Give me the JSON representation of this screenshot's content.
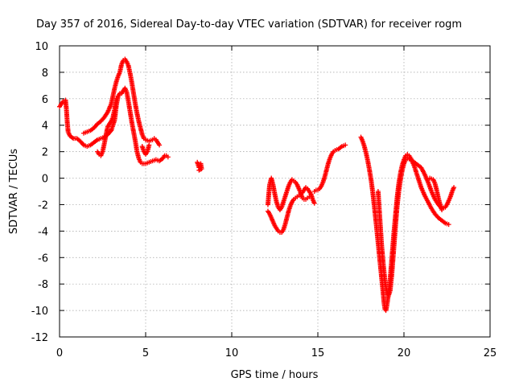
{
  "chart_data": {
    "type": "scatter",
    "title": "Day 357 of 2016, Sidereal Day-to-day VTEC variation (SDTVAR) for receiver rogm",
    "xlabel": "GPS time / hours",
    "ylabel": "SDTVAR / TECUs",
    "xlim": [
      0,
      25
    ],
    "ylim": [
      -12,
      10
    ],
    "xticks": [
      0,
      5,
      10,
      15,
      20,
      25
    ],
    "yticks": [
      10,
      8,
      6,
      4,
      2,
      0,
      -2,
      -4,
      -6,
      -8,
      -10,
      -12
    ],
    "grid": true,
    "marker": "+",
    "color": "#ff0000",
    "series": [
      {
        "values": [
          [
            0.0,
            5.4
          ],
          [
            0.1,
            5.6
          ],
          [
            0.2,
            5.8
          ],
          [
            0.3,
            5.7
          ],
          [
            0.35,
            5.9
          ],
          [
            0.4,
            5.2
          ],
          [
            0.45,
            4.2
          ],
          [
            0.5,
            3.5
          ],
          [
            0.6,
            3.2
          ],
          [
            0.8,
            3.0
          ],
          [
            1.0,
            3.0
          ],
          [
            1.2,
            2.8
          ],
          [
            1.4,
            2.5
          ],
          [
            1.6,
            2.4
          ],
          [
            1.8,
            2.5
          ],
          [
            2.0,
            2.7
          ],
          [
            2.2,
            2.9
          ],
          [
            2.4,
            3.0
          ],
          [
            2.6,
            3.1
          ],
          [
            2.8,
            3.3
          ],
          [
            3.0,
            3.6
          ],
          [
            3.2,
            4.4
          ],
          [
            3.3,
            5.5
          ],
          [
            3.4,
            6.2
          ],
          [
            3.5,
            6.4
          ],
          [
            3.6,
            6.4
          ],
          [
            3.7,
            6.6
          ],
          [
            3.8,
            6.8
          ],
          [
            3.9,
            6.5
          ],
          [
            4.0,
            5.8
          ],
          [
            4.1,
            5.0
          ],
          [
            4.2,
            4.2
          ],
          [
            4.3,
            3.5
          ],
          [
            4.4,
            2.8
          ],
          [
            4.5,
            2.0
          ],
          [
            4.6,
            1.5
          ],
          [
            4.7,
            1.2
          ],
          [
            4.8,
            1.1
          ],
          [
            5.0,
            1.1
          ],
          [
            5.2,
            1.2
          ],
          [
            5.4,
            1.3
          ],
          [
            5.6,
            1.4
          ],
          [
            5.8,
            1.3
          ],
          [
            6.0,
            1.5
          ],
          [
            6.1,
            1.7
          ],
          [
            6.2,
            1.7
          ],
          [
            6.3,
            1.6
          ]
        ]
      },
      {
        "values": [
          [
            1.4,
            3.4
          ],
          [
            1.6,
            3.5
          ],
          [
            1.8,
            3.6
          ],
          [
            2.0,
            3.8
          ],
          [
            2.2,
            4.1
          ],
          [
            2.4,
            4.3
          ],
          [
            2.6,
            4.6
          ],
          [
            2.8,
            5.0
          ],
          [
            3.0,
            5.6
          ],
          [
            3.1,
            6.2
          ],
          [
            3.2,
            6.8
          ],
          [
            3.3,
            7.3
          ],
          [
            3.4,
            7.7
          ],
          [
            3.5,
            8.0
          ],
          [
            3.6,
            8.6
          ],
          [
            3.7,
            8.9
          ],
          [
            3.8,
            9.0
          ],
          [
            3.9,
            8.8
          ],
          [
            4.0,
            8.5
          ],
          [
            4.1,
            7.9
          ],
          [
            4.2,
            7.2
          ],
          [
            4.3,
            6.4
          ],
          [
            4.4,
            5.6
          ],
          [
            4.5,
            4.9
          ],
          [
            4.6,
            4.3
          ],
          [
            4.7,
            3.8
          ],
          [
            4.8,
            3.3
          ],
          [
            4.9,
            3.0
          ],
          [
            5.0,
            2.9
          ],
          [
            5.2,
            2.8
          ],
          [
            5.4,
            2.9
          ],
          [
            5.5,
            3.0
          ],
          [
            5.6,
            2.9
          ],
          [
            5.7,
            2.7
          ],
          [
            5.8,
            2.5
          ]
        ]
      },
      {
        "values": [
          [
            2.2,
            2.0
          ],
          [
            2.3,
            1.8
          ],
          [
            2.4,
            1.7
          ],
          [
            2.5,
            2.0
          ],
          [
            2.6,
            2.6
          ],
          [
            2.7,
            3.3
          ],
          [
            2.8,
            3.9
          ],
          [
            2.9,
            4.1
          ],
          [
            3.0,
            4.3
          ],
          [
            3.1,
            4.6
          ],
          [
            3.2,
            5.2
          ],
          [
            3.3,
            6.0
          ]
        ]
      },
      {
        "values": [
          [
            4.8,
            2.4
          ],
          [
            4.9,
            2.0
          ],
          [
            5.0,
            1.8
          ],
          [
            5.1,
            2.0
          ],
          [
            5.2,
            2.5
          ]
        ]
      },
      {
        "values": [
          [
            8.0,
            1.2
          ],
          [
            8.05,
            1.0
          ],
          [
            8.1,
            0.8
          ],
          [
            8.15,
            0.9
          ],
          [
            8.2,
            1.1
          ],
          [
            8.25,
            0.7
          ],
          [
            8.1,
            0.6
          ]
        ]
      },
      {
        "values": [
          [
            12.1,
            -2.0
          ],
          [
            12.15,
            -1.2
          ],
          [
            12.2,
            -0.5
          ],
          [
            12.3,
            0.0
          ],
          [
            12.4,
            -0.5
          ],
          [
            12.5,
            -1.2
          ],
          [
            12.6,
            -1.8
          ],
          [
            12.7,
            -2.2
          ],
          [
            12.8,
            -2.4
          ],
          [
            12.9,
            -2.2
          ],
          [
            13.0,
            -1.8
          ],
          [
            13.1,
            -1.4
          ],
          [
            13.2,
            -1.0
          ],
          [
            13.3,
            -0.6
          ],
          [
            13.4,
            -0.3
          ],
          [
            13.5,
            -0.1
          ],
          [
            13.6,
            -0.2
          ],
          [
            13.7,
            -0.3
          ],
          [
            13.8,
            -0.5
          ],
          [
            13.9,
            -0.8
          ],
          [
            14.0,
            -1.1
          ],
          [
            14.1,
            -1.5
          ],
          [
            14.2,
            -1.6
          ],
          [
            14.3,
            -1.6
          ],
          [
            14.4,
            -1.5
          ],
          [
            14.5,
            -1.4
          ]
        ]
      },
      {
        "values": [
          [
            12.1,
            -2.5
          ],
          [
            12.2,
            -2.7
          ],
          [
            12.3,
            -3.0
          ],
          [
            12.4,
            -3.3
          ],
          [
            12.5,
            -3.6
          ],
          [
            12.6,
            -3.8
          ],
          [
            12.7,
            -4.0
          ],
          [
            12.8,
            -4.1
          ],
          [
            12.9,
            -4.1
          ],
          [
            13.0,
            -3.9
          ],
          [
            13.1,
            -3.5
          ],
          [
            13.2,
            -3.0
          ],
          [
            13.3,
            -2.5
          ],
          [
            13.4,
            -2.1
          ],
          [
            13.5,
            -1.8
          ],
          [
            13.6,
            -1.6
          ],
          [
            13.7,
            -1.5
          ],
          [
            13.8,
            -1.4
          ],
          [
            13.9,
            -1.3
          ],
          [
            14.0,
            -1.2
          ],
          [
            14.1,
            -1.1
          ],
          [
            14.2,
            -0.9
          ],
          [
            14.3,
            -0.7
          ],
          [
            14.4,
            -0.8
          ],
          [
            14.5,
            -1.0
          ],
          [
            14.6,
            -1.2
          ],
          [
            14.7,
            -1.6
          ],
          [
            14.8,
            -1.9
          ]
        ]
      },
      {
        "values": [
          [
            14.8,
            -1.0
          ],
          [
            14.9,
            -0.9
          ],
          [
            15.0,
            -0.9
          ],
          [
            15.1,
            -0.8
          ],
          [
            15.2,
            -0.6
          ],
          [
            15.3,
            -0.3
          ],
          [
            15.4,
            0.1
          ],
          [
            15.5,
            0.6
          ],
          [
            15.6,
            1.1
          ],
          [
            15.7,
            1.5
          ],
          [
            15.8,
            1.8
          ],
          [
            15.9,
            2.0
          ],
          [
            16.0,
            2.1
          ],
          [
            16.2,
            2.2
          ],
          [
            16.4,
            2.4
          ],
          [
            16.6,
            2.5
          ]
        ]
      },
      {
        "values": [
          [
            17.5,
            3.1
          ],
          [
            17.6,
            2.8
          ],
          [
            17.7,
            2.4
          ],
          [
            17.8,
            1.9
          ],
          [
            17.9,
            1.3
          ],
          [
            18.0,
            0.6
          ],
          [
            18.1,
            -0.2
          ],
          [
            18.2,
            -1.2
          ],
          [
            18.3,
            -2.4
          ],
          [
            18.4,
            -3.6
          ],
          [
            18.5,
            -4.9
          ],
          [
            18.6,
            -6.2
          ],
          [
            18.7,
            -7.5
          ],
          [
            18.8,
            -8.8
          ],
          [
            18.85,
            -9.5
          ],
          [
            18.9,
            -9.9
          ],
          [
            18.95,
            -10.0
          ],
          [
            19.0,
            -9.7
          ],
          [
            19.1,
            -8.8
          ],
          [
            19.2,
            -7.6
          ],
          [
            19.3,
            -6.0
          ],
          [
            19.4,
            -4.4
          ],
          [
            19.5,
            -2.9
          ],
          [
            19.6,
            -1.5
          ],
          [
            19.7,
            -0.4
          ],
          [
            19.8,
            0.4
          ],
          [
            19.9,
            1.0
          ],
          [
            20.0,
            1.4
          ],
          [
            20.1,
            1.7
          ],
          [
            20.2,
            1.8
          ],
          [
            20.3,
            1.7
          ],
          [
            20.4,
            1.5
          ],
          [
            20.5,
            1.2
          ],
          [
            20.6,
            0.9
          ],
          [
            20.7,
            0.5
          ],
          [
            20.8,
            0.1
          ],
          [
            20.9,
            -0.3
          ],
          [
            21.0,
            -0.7
          ],
          [
            21.2,
            -1.3
          ],
          [
            21.4,
            -1.8
          ],
          [
            21.6,
            -2.3
          ],
          [
            21.8,
            -2.7
          ],
          [
            22.0,
            -3.0
          ],
          [
            22.2,
            -3.2
          ],
          [
            22.4,
            -3.4
          ],
          [
            22.6,
            -3.5
          ]
        ]
      },
      {
        "values": [
          [
            18.5,
            -1.0
          ],
          [
            18.6,
            -3.0
          ],
          [
            18.7,
            -5.0
          ],
          [
            18.8,
            -6.5
          ],
          [
            18.9,
            -7.8
          ],
          [
            19.0,
            -8.6
          ],
          [
            19.1,
            -8.9
          ],
          [
            19.2,
            -8.5
          ],
          [
            19.3,
            -7.2
          ],
          [
            19.4,
            -5.5
          ],
          [
            19.5,
            -3.8
          ],
          [
            19.6,
            -2.2
          ],
          [
            19.7,
            -1.0
          ],
          [
            19.8,
            -0.1
          ],
          [
            19.9,
            0.6
          ],
          [
            20.0,
            1.1
          ],
          [
            20.1,
            1.4
          ],
          [
            20.2,
            1.5
          ],
          [
            20.4,
            1.4
          ],
          [
            20.6,
            1.2
          ],
          [
            20.8,
            1.0
          ],
          [
            21.0,
            0.8
          ],
          [
            21.2,
            0.3
          ],
          [
            21.4,
            -0.3
          ],
          [
            21.6,
            -1.0
          ],
          [
            21.8,
            -1.6
          ],
          [
            22.0,
            -2.0
          ],
          [
            22.2,
            -2.3
          ],
          [
            22.4,
            -2.2
          ],
          [
            22.5,
            -2.0
          ],
          [
            22.6,
            -1.7
          ],
          [
            22.7,
            -1.4
          ],
          [
            22.8,
            -1.0
          ],
          [
            22.9,
            -0.7
          ]
        ]
      },
      {
        "values": [
          [
            21.5,
            0.0
          ],
          [
            21.7,
            -0.1
          ],
          [
            21.8,
            -0.4
          ],
          [
            21.9,
            -0.9
          ],
          [
            22.0,
            -1.5
          ],
          [
            22.1,
            -2.0
          ],
          [
            22.2,
            -2.4
          ]
        ]
      }
    ]
  }
}
